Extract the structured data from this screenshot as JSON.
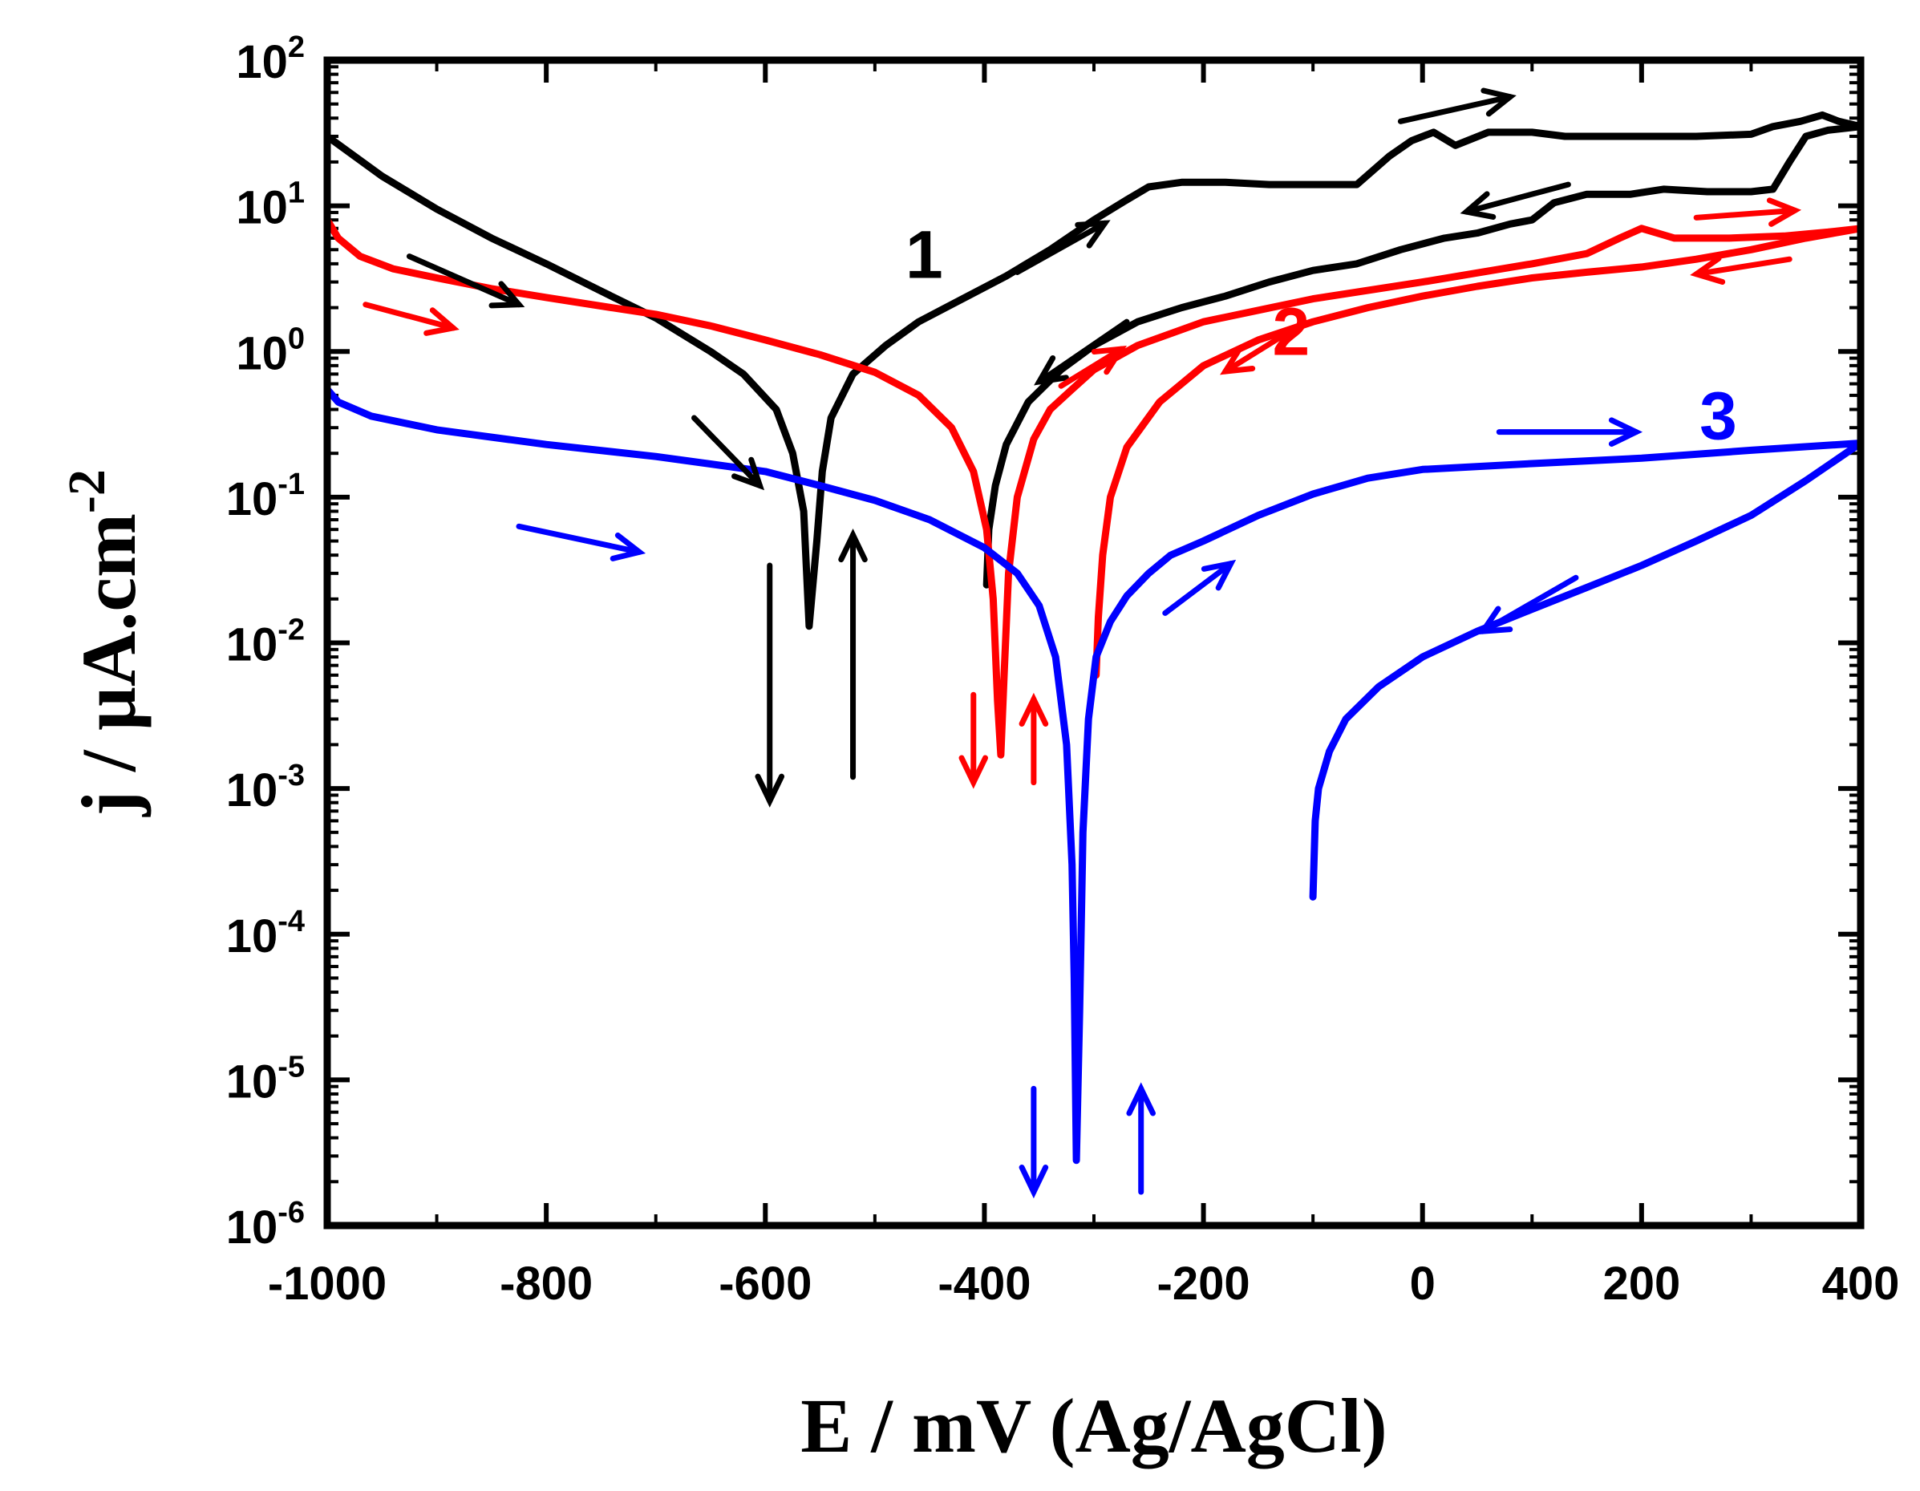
{
  "chart_data": {
    "type": "line",
    "title": "",
    "xlabel": "E / mV (Ag/AgCl)",
    "ylabel_parts": {
      "main": "j / µA.cm",
      "sup": "-2"
    },
    "xscale": "linear",
    "yscale": "log",
    "xlim": [
      -1000,
      400
    ],
    "ylim_exp": [
      -6,
      2
    ],
    "x_ticks": [
      -1000,
      -800,
      -600,
      -400,
      -200,
      0,
      200,
      400
    ],
    "x_tick_labels": [
      "-1000",
      "-800",
      "-600",
      "-400",
      "-200",
      "0",
      "200",
      "400"
    ],
    "y_ticks": [
      {
        "base": "10",
        "exp": "-6"
      },
      {
        "base": "10",
        "exp": "-5"
      },
      {
        "base": "10",
        "exp": "-4"
      },
      {
        "base": "10",
        "exp": "-3"
      },
      {
        "base": "10",
        "exp": "-2"
      },
      {
        "base": "10",
        "exp": "-1"
      },
      {
        "base": "10",
        "exp": "0"
      },
      {
        "base": "10",
        "exp": "1"
      },
      {
        "base": "10",
        "exp": "2"
      }
    ],
    "series": [
      {
        "name": "1",
        "color": "#000000",
        "forward": [
          [
            -1000,
            30
          ],
          [
            -950,
            16
          ],
          [
            -900,
            9.5
          ],
          [
            -850,
            6
          ],
          [
            -800,
            4
          ],
          [
            -750,
            2.6
          ],
          [
            -700,
            1.7
          ],
          [
            -650,
            1.0
          ],
          [
            -620,
            0.7
          ],
          [
            -590,
            0.4
          ],
          [
            -575,
            0.2
          ],
          [
            -565,
            0.08
          ],
          [
            -560,
            0.013
          ],
          [
            -553,
            0.05
          ],
          [
            -548,
            0.15
          ],
          [
            -540,
            0.35
          ],
          [
            -520,
            0.7
          ],
          [
            -490,
            1.1
          ],
          [
            -460,
            1.6
          ],
          [
            -420,
            2.3
          ],
          [
            -380,
            3.3
          ],
          [
            -340,
            5
          ],
          [
            -300,
            8
          ],
          [
            -270,
            11
          ],
          [
            -250,
            13.5
          ],
          [
            -220,
            14.5
          ],
          [
            -180,
            14.5
          ],
          [
            -140,
            14
          ],
          [
            -100,
            14
          ],
          [
            -60,
            14
          ],
          [
            -30,
            22
          ],
          [
            -10,
            28
          ],
          [
            10,
            32
          ],
          [
            30,
            26
          ],
          [
            60,
            32
          ],
          [
            100,
            32
          ],
          [
            130,
            30
          ],
          [
            160,
            30
          ],
          [
            200,
            30
          ],
          [
            250,
            30
          ],
          [
            300,
            31
          ],
          [
            320,
            35
          ],
          [
            345,
            38
          ],
          [
            365,
            42
          ],
          [
            380,
            38
          ],
          [
            400,
            35
          ]
        ],
        "reverse": [
          [
            400,
            35
          ],
          [
            370,
            33
          ],
          [
            350,
            30
          ],
          [
            335,
            20
          ],
          [
            320,
            13
          ],
          [
            300,
            12.5
          ],
          [
            260,
            12.5
          ],
          [
            220,
            13
          ],
          [
            190,
            12
          ],
          [
            150,
            12
          ],
          [
            120,
            10.5
          ],
          [
            100,
            8
          ],
          [
            80,
            7.5
          ],
          [
            50,
            6.5
          ],
          [
            20,
            6
          ],
          [
            -20,
            5
          ],
          [
            -60,
            4
          ],
          [
            -100,
            3.6
          ],
          [
            -140,
            3
          ],
          [
            -180,
            2.4
          ],
          [
            -220,
            2
          ],
          [
            -260,
            1.6
          ],
          [
            -300,
            1.1
          ],
          [
            -330,
            0.75
          ],
          [
            -360,
            0.45
          ],
          [
            -380,
            0.23
          ],
          [
            -390,
            0.12
          ],
          [
            -396,
            0.06
          ],
          [
            -398,
            0.025
          ]
        ]
      },
      {
        "name": "2",
        "color": "#ff0000",
        "forward": [
          [
            -1000,
            8
          ],
          [
            -990,
            6
          ],
          [
            -970,
            4.5
          ],
          [
            -940,
            3.7
          ],
          [
            -900,
            3.2
          ],
          [
            -850,
            2.7
          ],
          [
            -800,
            2.35
          ],
          [
            -750,
            2.05
          ],
          [
            -700,
            1.8
          ],
          [
            -650,
            1.5
          ],
          [
            -600,
            1.2
          ],
          [
            -550,
            0.95
          ],
          [
            -500,
            0.72
          ],
          [
            -460,
            0.5
          ],
          [
            -430,
            0.3
          ],
          [
            -410,
            0.15
          ],
          [
            -398,
            0.06
          ],
          [
            -392,
            0.02
          ],
          [
            -388,
            0.004
          ],
          [
            -385,
            0.0017
          ],
          [
            -382,
            0.006
          ],
          [
            -378,
            0.03
          ],
          [
            -370,
            0.1
          ],
          [
            -355,
            0.25
          ],
          [
            -340,
            0.4
          ],
          [
            -320,
            0.55
          ],
          [
            -300,
            0.75
          ],
          [
            -260,
            1.1
          ],
          [
            -200,
            1.6
          ],
          [
            -100,
            2.3
          ],
          [
            0,
            3.0
          ],
          [
            100,
            4.0
          ],
          [
            150,
            4.7
          ],
          [
            180,
            6
          ],
          [
            200,
            7
          ],
          [
            230,
            6
          ],
          [
            280,
            6
          ],
          [
            330,
            6.2
          ],
          [
            370,
            6.6
          ],
          [
            400,
            7
          ]
        ],
        "reverse": [
          [
            400,
            7
          ],
          [
            350,
            6
          ],
          [
            300,
            5
          ],
          [
            250,
            4.3
          ],
          [
            200,
            3.8
          ],
          [
            150,
            3.5
          ],
          [
            100,
            3.2
          ],
          [
            50,
            2.8
          ],
          [
            0,
            2.4
          ],
          [
            -50,
            2.0
          ],
          [
            -100,
            1.6
          ],
          [
            -150,
            1.2
          ],
          [
            -200,
            0.8
          ],
          [
            -240,
            0.45
          ],
          [
            -270,
            0.22
          ],
          [
            -285,
            0.1
          ],
          [
            -292,
            0.04
          ],
          [
            -296,
            0.015
          ],
          [
            -298,
            0.006
          ]
        ]
      },
      {
        "name": "3",
        "color": "#0000ff",
        "forward": [
          [
            -1000,
            0.55
          ],
          [
            -990,
            0.45
          ],
          [
            -960,
            0.36
          ],
          [
            -900,
            0.29
          ],
          [
            -800,
            0.23
          ],
          [
            -700,
            0.19
          ],
          [
            -600,
            0.15
          ],
          [
            -550,
            0.12
          ],
          [
            -500,
            0.095
          ],
          [
            -450,
            0.07
          ],
          [
            -400,
            0.045
          ],
          [
            -370,
            0.03
          ],
          [
            -350,
            0.018
          ],
          [
            -335,
            0.008
          ],
          [
            -325,
            0.002
          ],
          [
            -320,
            0.0003
          ],
          [
            -318,
            5e-05
          ],
          [
            -316,
            2.8e-06
          ],
          [
            -313,
            3e-05
          ],
          [
            -310,
            0.0005
          ],
          [
            -305,
            0.003
          ],
          [
            -298,
            0.008
          ],
          [
            -285,
            0.014
          ],
          [
            -270,
            0.021
          ],
          [
            -250,
            0.03
          ],
          [
            -230,
            0.04
          ],
          [
            -200,
            0.05
          ],
          [
            -150,
            0.075
          ],
          [
            -100,
            0.105
          ],
          [
            -50,
            0.135
          ],
          [
            0,
            0.155
          ],
          [
            100,
            0.17
          ],
          [
            200,
            0.185
          ],
          [
            300,
            0.21
          ],
          [
            400,
            0.235
          ]
        ],
        "reverse": [
          [
            400,
            0.235
          ],
          [
            350,
            0.13
          ],
          [
            300,
            0.075
          ],
          [
            250,
            0.05
          ],
          [
            200,
            0.034
          ],
          [
            150,
            0.024
          ],
          [
            100,
            0.017
          ],
          [
            50,
            0.012
          ],
          [
            0,
            0.008
          ],
          [
            -40,
            0.005
          ],
          [
            -70,
            0.003
          ],
          [
            -85,
            0.0018
          ],
          [
            -95,
            0.001
          ],
          [
            -98,
            0.0006
          ],
          [
            -100,
            0.00018
          ]
        ]
      }
    ],
    "annotations": {
      "labels": [
        {
          "text": "1",
          "color": "#000000",
          "x": -455,
          "y": 3.2
        },
        {
          "text": "2",
          "color": "#ff0000",
          "x": -120,
          "y": 0.95
        },
        {
          "text": "3",
          "color": "#0000ff",
          "x": 270,
          "y": 0.25
        }
      ],
      "arrows": [
        {
          "color": "#000000",
          "from": [
            -925,
            4.5
          ],
          "to": [
            -825,
            2.1
          ]
        },
        {
          "color": "#000000",
          "from": [
            -665,
            0.35
          ],
          "to": [
            -605,
            0.12
          ]
        },
        {
          "color": "#000000",
          "from": [
            -596,
            0.034
          ],
          "to": [
            -596,
            0.00082
          ]
        },
        {
          "color": "#000000",
          "from": [
            -520,
            0.0012
          ],
          "to": [
            -520,
            0.055
          ]
        },
        {
          "color": "#000000",
          "from": [
            -370,
            3.5
          ],
          "to": [
            -290,
            7.6
          ]
        },
        {
          "color": "#000000",
          "from": [
            -270,
            1.6
          ],
          "to": [
            -350,
            0.62
          ]
        },
        {
          "color": "#000000",
          "from": [
            -20,
            38
          ],
          "to": [
            80,
            56
          ]
        },
        {
          "color": "#000000",
          "from": [
            133,
            14
          ],
          "to": [
            40,
            9.1
          ]
        },
        {
          "color": "#ff0000",
          "from": [
            -965,
            2.1
          ],
          "to": [
            -885,
            1.45
          ]
        },
        {
          "color": "#ff0000",
          "from": [
            -410,
            0.0044
          ],
          "to": [
            -410,
            0.0011
          ]
        },
        {
          "color": "#ff0000",
          "from": [
            -355,
            0.0011
          ],
          "to": [
            -355,
            0.0041
          ]
        },
        {
          "color": "#ff0000",
          "from": [
            -330,
            0.58
          ],
          "to": [
            -275,
            1.04
          ]
        },
        {
          "color": "#ff0000",
          "from": [
            -115,
            1.47
          ],
          "to": [
            -180,
            0.73
          ]
        },
        {
          "color": "#ff0000",
          "from": [
            250,
            8.3
          ],
          "to": [
            340,
            9.3
          ]
        },
        {
          "color": "#ff0000",
          "from": [
            335,
            4.3
          ],
          "to": [
            250,
            3.4
          ]
        },
        {
          "color": "#0000ff",
          "from": [
            -825,
            0.063
          ],
          "to": [
            -715,
            0.042
          ]
        },
        {
          "color": "#0000ff",
          "from": [
            -355,
            8.7e-06
          ],
          "to": [
            -355,
            1.7e-06
          ]
        },
        {
          "color": "#0000ff",
          "from": [
            -257,
            1.7e-06
          ],
          "to": [
            -257,
            8.7e-06
          ]
        },
        {
          "color": "#0000ff",
          "from": [
            -235,
            0.016
          ],
          "to": [
            -175,
            0.035
          ]
        },
        {
          "color": "#0000ff",
          "from": [
            70,
            0.28
          ],
          "to": [
            195,
            0.28
          ]
        },
        {
          "color": "#0000ff",
          "from": [
            140,
            0.028
          ],
          "to": [
            55,
            0.012
          ]
        }
      ]
    }
  }
}
